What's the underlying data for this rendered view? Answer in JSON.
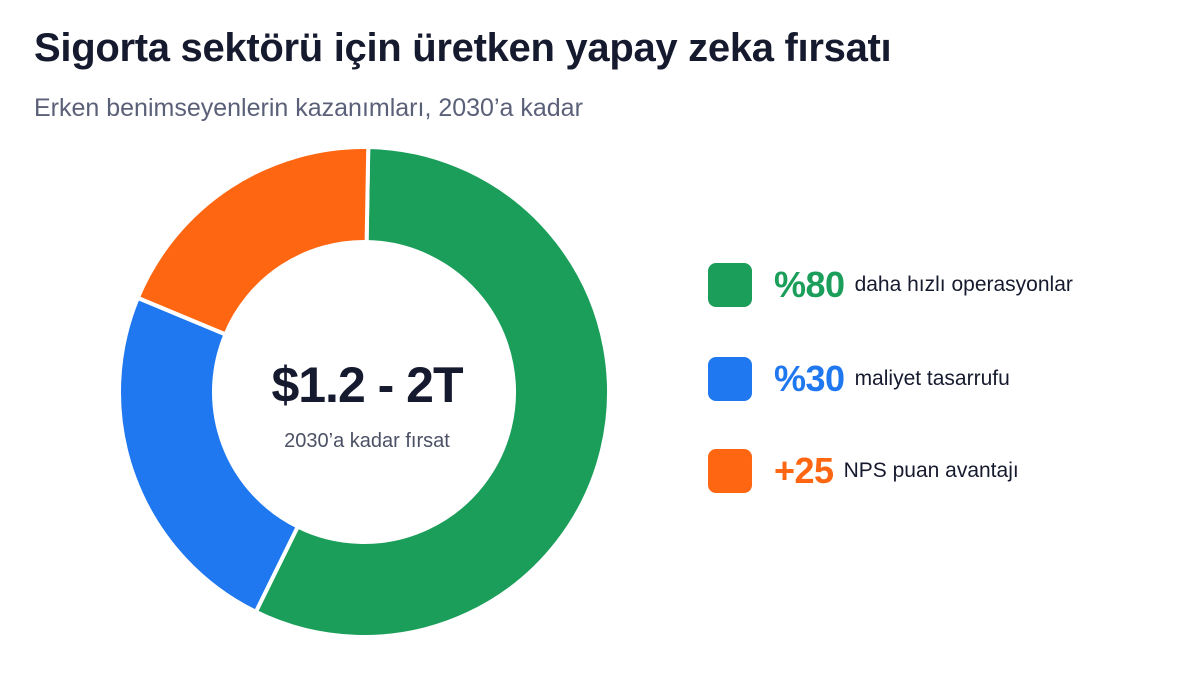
{
  "title": "Sigorta sektörü için üretken yapay zeka fırsatı",
  "subtitle": "Erken benimseyenlerin kazanımları, 2030’a kadar",
  "center": {
    "value": "$1.2 - 2T",
    "caption": "2030’a kadar fırsat"
  },
  "colors": {
    "green": "#1b9e5a",
    "blue": "#1f78f0",
    "orange": "#ff6612"
  },
  "chart_data": {
    "type": "pie",
    "style": "donut",
    "categories": [
      "%80 daha hızlı operasyonlar",
      "%30 maliyet tasarrufu",
      "+25 NPS puan avantajı"
    ],
    "values": [
      57,
      24,
      19
    ],
    "colors": [
      "#1b9e5a",
      "#1f78f0",
      "#ff6612"
    ],
    "legend_position": "right"
  },
  "legend": [
    {
      "value": "%80",
      "label": "daha hızlı operasyonlar",
      "color": "#1b9e5a"
    },
    {
      "value": "%30",
      "label": "maliyet tasarrufu",
      "color": "#1f78f0"
    },
    {
      "value": "+25",
      "label": "NPS puan avantajı",
      "color": "#ff6612"
    }
  ]
}
